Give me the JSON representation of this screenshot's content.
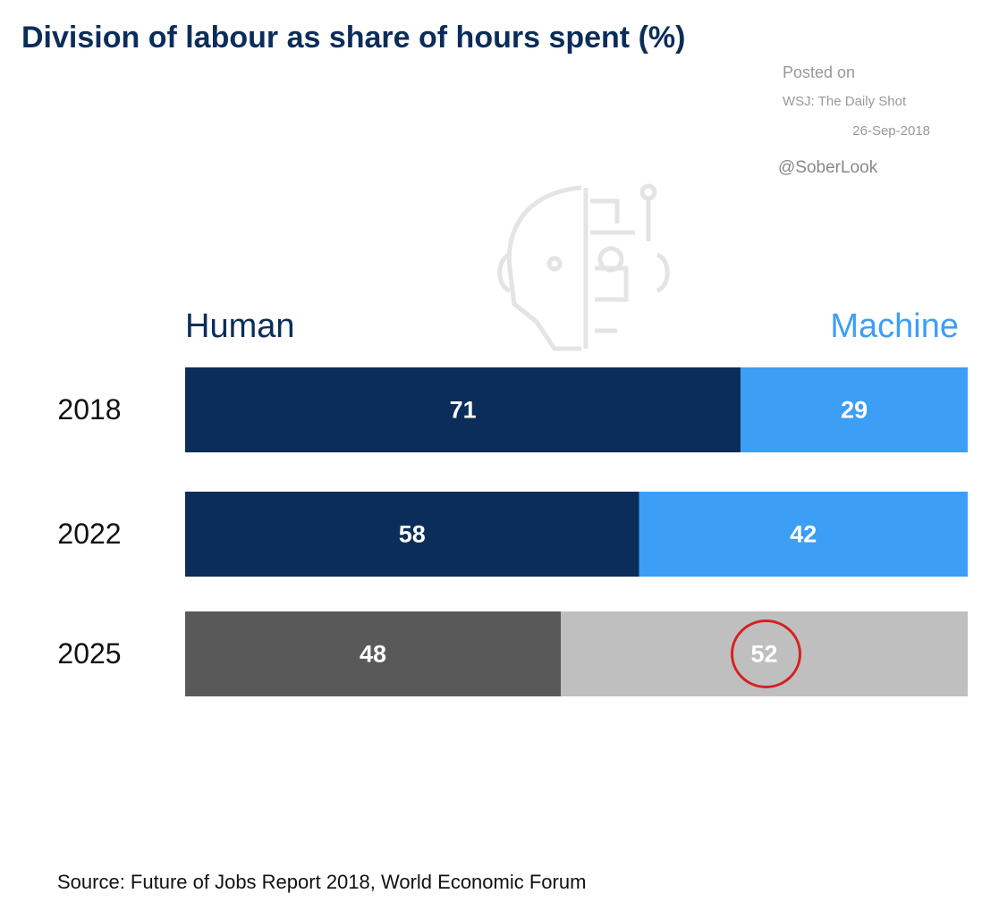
{
  "chart_data": {
    "type": "stacked-bar-horizontal",
    "title": "Division of labour as share of hours spent (%)",
    "annotations": [
      "Posted on",
      "WSJ: The Daily Shot",
      "26-Sep-2018",
      "@SoberLook"
    ],
    "source": "Source: Future of Jobs Report 2018, World Economic Forum",
    "categories": [
      "2018",
      "2022",
      "2025"
    ],
    "series": [
      {
        "name": "Human",
        "color": "#0b2d5a",
        "colors": [
          "#0b2d5a",
          "#0b2d5a",
          "#595959"
        ],
        "values": [
          71,
          58,
          48
        ]
      },
      {
        "name": "Machine",
        "color": "#3d9ef5",
        "colors": [
          "#3d9ef5",
          "#3d9ef5",
          "#bfbfbf"
        ],
        "values": [
          29,
          42,
          52
        ]
      }
    ],
    "xlim": [
      0,
      100
    ],
    "circled": {
      "series": 1,
      "index": 2,
      "color": "#d62020"
    }
  }
}
